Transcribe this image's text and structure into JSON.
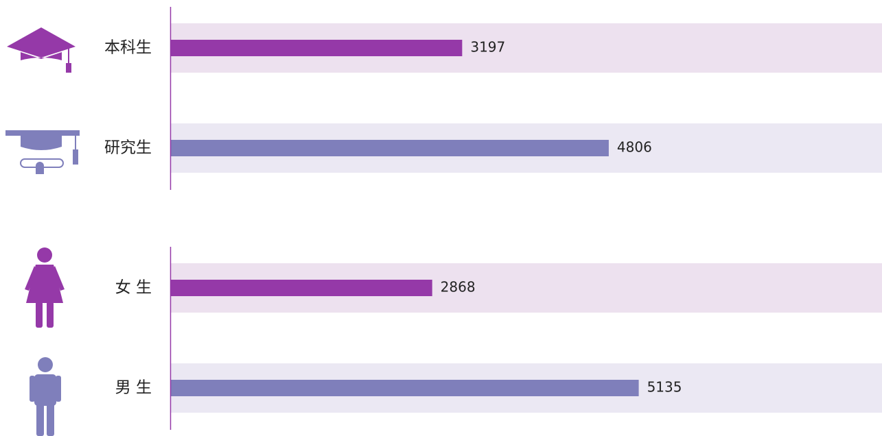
{
  "chart_data": [
    {
      "type": "bar",
      "orientation": "horizontal",
      "categories": [
        "本科生",
        "研究生"
      ],
      "values": [
        3197,
        4806
      ],
      "colors": [
        "#9539a8",
        "#7f7fbb"
      ],
      "band_colors": [
        "#ede1ef",
        "#ebe8f3"
      ]
    },
    {
      "type": "bar",
      "orientation": "horizontal",
      "categories": [
        "女 生",
        "男 生"
      ],
      "values": [
        2868,
        5135
      ],
      "colors": [
        "#9539a8",
        "#7f7fbb"
      ],
      "band_colors": [
        "#ede1ef",
        "#ebe8f3"
      ]
    }
  ]
}
